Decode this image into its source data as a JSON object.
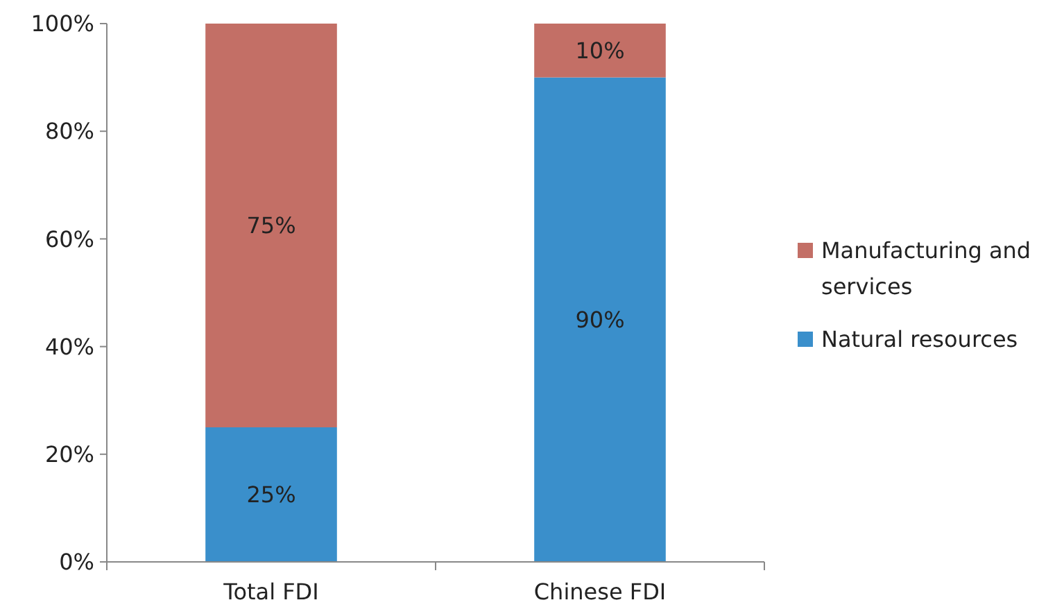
{
  "chart_data": {
    "type": "bar",
    "stacked": true,
    "categories": [
      "Total FDI",
      "Chinese FDI"
    ],
    "series": [
      {
        "name": "Natural resources",
        "color": "#3a8fcb",
        "values": [
          25,
          90
        ]
      },
      {
        "name": "Manufacturing and services",
        "color": "#c36f66",
        "values": [
          75,
          10
        ]
      }
    ],
    "ylim": [
      0,
      100
    ],
    "yticks": [
      {
        "value": 0,
        "label": "0%"
      },
      {
        "value": 20,
        "label": "20%"
      },
      {
        "value": 40,
        "label": "40%"
      },
      {
        "value": 60,
        "label": "60%"
      },
      {
        "value": 80,
        "label": "80%"
      },
      {
        "value": 100,
        "label": "100%"
      }
    ],
    "value_labels": [
      [
        "25%",
        "90%"
      ],
      [
        "75%",
        "10%"
      ]
    ],
    "grid": false,
    "legend": "right"
  }
}
